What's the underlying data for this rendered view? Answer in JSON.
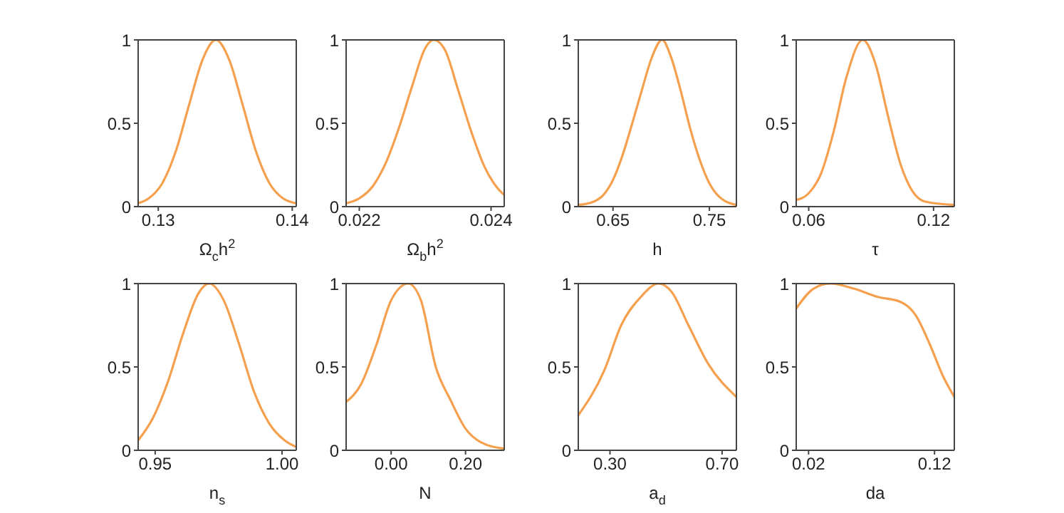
{
  "chart_data": [
    {
      "type": "line",
      "xlabel": "Ω$_{c}$h$^{2}$",
      "color": "#f5a04e",
      "xlim": [
        0.1285,
        0.1403
      ],
      "xticks": [
        0.13,
        0.14
      ],
      "ylim": [
        0,
        1
      ],
      "yticks": [
        0,
        0.5,
        1
      ],
      "x": [
        0.1285,
        0.1293,
        0.1303,
        0.1313,
        0.1323,
        0.1333,
        0.1343,
        0.1353,
        0.1363,
        0.1373,
        0.1383,
        0.1393,
        0.1403
      ],
      "values": [
        0.02,
        0.05,
        0.14,
        0.33,
        0.61,
        0.88,
        1,
        0.88,
        0.61,
        0.33,
        0.14,
        0.05,
        0.02
      ]
    },
    {
      "type": "line",
      "xlabel": "Ω$_{b}$h$^{2}$",
      "color": "#f5a04e",
      "xlim": [
        0.0218,
        0.0242
      ],
      "xticks": [
        0.022,
        0.024
      ],
      "ylim": [
        0,
        1
      ],
      "yticks": [
        0,
        0.5,
        1
      ],
      "x": [
        0.0218,
        0.022,
        0.0222,
        0.0224,
        0.0226,
        0.0228,
        0.023,
        0.02313,
        0.0233,
        0.0235,
        0.0237,
        0.0239,
        0.0241,
        0.0242
      ],
      "values": [
        0.02,
        0.05,
        0.12,
        0.26,
        0.47,
        0.72,
        0.95,
        1,
        0.94,
        0.7,
        0.45,
        0.24,
        0.11,
        0.07
      ]
    },
    {
      "type": "line",
      "xlabel": "h",
      "color": "#f5a04e",
      "xlim": [
        0.614,
        0.778
      ],
      "xticks": [
        0.65,
        0.75
      ],
      "ylim": [
        0,
        1
      ],
      "yticks": [
        0,
        0.5,
        1
      ],
      "x": [
        0.614,
        0.63,
        0.64,
        0.65,
        0.66,
        0.67,
        0.68,
        0.69,
        0.701,
        0.71,
        0.72,
        0.73,
        0.74,
        0.75,
        0.76,
        0.778
      ],
      "values": [
        0.01,
        0.03,
        0.07,
        0.16,
        0.31,
        0.5,
        0.7,
        0.89,
        1,
        0.9,
        0.7,
        0.47,
        0.28,
        0.14,
        0.06,
        0.01
      ]
    },
    {
      "type": "line",
      "xlabel": "τ",
      "color": "#f5a04e",
      "xlim": [
        0.054,
        0.13
      ],
      "xticks": [
        0.06,
        0.12
      ],
      "ylim": [
        0,
        1
      ],
      "yticks": [
        0,
        0.5,
        1
      ],
      "x": [
        0.054,
        0.06,
        0.066,
        0.072,
        0.078,
        0.086,
        0.092,
        0.098,
        0.104,
        0.11,
        0.116,
        0.13
      ],
      "values": [
        0.04,
        0.08,
        0.2,
        0.45,
        0.77,
        1,
        0.86,
        0.55,
        0.26,
        0.09,
        0.03,
        0.01
      ]
    },
    {
      "type": "line",
      "xlabel": "n$_{s}$",
      "color": "#f5a04e",
      "xlim": [
        0.9433,
        1.0056
      ],
      "xticks": [
        0.95,
        {
          "value": 1,
          "label": "1.00"
        }
      ],
      "ylim": [
        0,
        1
      ],
      "yticks": [
        0,
        0.5,
        1
      ],
      "x": [
        0.9433,
        0.949,
        0.955,
        0.961,
        0.967,
        0.9713,
        0.977,
        0.983,
        0.989,
        0.995,
        1.001,
        1.0056
      ],
      "values": [
        0.06,
        0.19,
        0.41,
        0.7,
        0.94,
        1,
        0.9,
        0.64,
        0.35,
        0.16,
        0.06,
        0.02
      ]
    },
    {
      "type": "line",
      "xlabel": "N",
      "color": "#f5a04e",
      "xlim": [
        -0.121,
        0.304
      ],
      "xticks": [
        {
          "value": 0,
          "label": "0.00"
        },
        {
          "value": 0.2,
          "label": "0.20"
        }
      ],
      "ylim": [
        0,
        1
      ],
      "yticks": [
        0,
        0.5,
        1
      ],
      "x": [
        -0.121,
        -0.08,
        -0.04,
        0,
        0.046,
        0.08,
        0.12,
        0.16,
        0.2,
        0.24,
        0.304
      ],
      "values": [
        0.29,
        0.4,
        0.63,
        0.9,
        1,
        0.9,
        0.5,
        0.3,
        0.13,
        0.05,
        0.01
      ]
    },
    {
      "type": "line",
      "xlabel": "a$_{d}$",
      "color": "#f5a04e",
      "xlim": [
        0.187,
        0.751
      ],
      "xticks": [
        {
          "value": 0.3,
          "label": "0.30"
        },
        {
          "value": 0.7,
          "label": "0.70"
        }
      ],
      "ylim": [
        0,
        1
      ],
      "yticks": [
        0,
        0.5,
        1
      ],
      "x": [
        0.187,
        0.28,
        0.34,
        0.41,
        0.474,
        0.52,
        0.58,
        0.65,
        0.751
      ],
      "values": [
        0.21,
        0.48,
        0.75,
        0.92,
        1,
        0.95,
        0.75,
        0.52,
        0.32
      ]
    },
    {
      "type": "line",
      "xlabel": "da",
      "color": "#f5a04e",
      "xlim": [
        0.0102,
        0.1357
      ],
      "xticks": [
        0.02,
        0.12
      ],
      "ylim": [
        0,
        1
      ],
      "yticks": [
        0,
        0.5,
        1
      ],
      "x": [
        0.0102,
        0.024,
        0.037,
        0.056,
        0.075,
        0.093,
        0.105,
        0.116,
        0.127,
        0.1357
      ],
      "values": [
        0.85,
        0.97,
        1,
        0.97,
        0.92,
        0.89,
        0.81,
        0.64,
        0.44,
        0.32
      ]
    }
  ]
}
